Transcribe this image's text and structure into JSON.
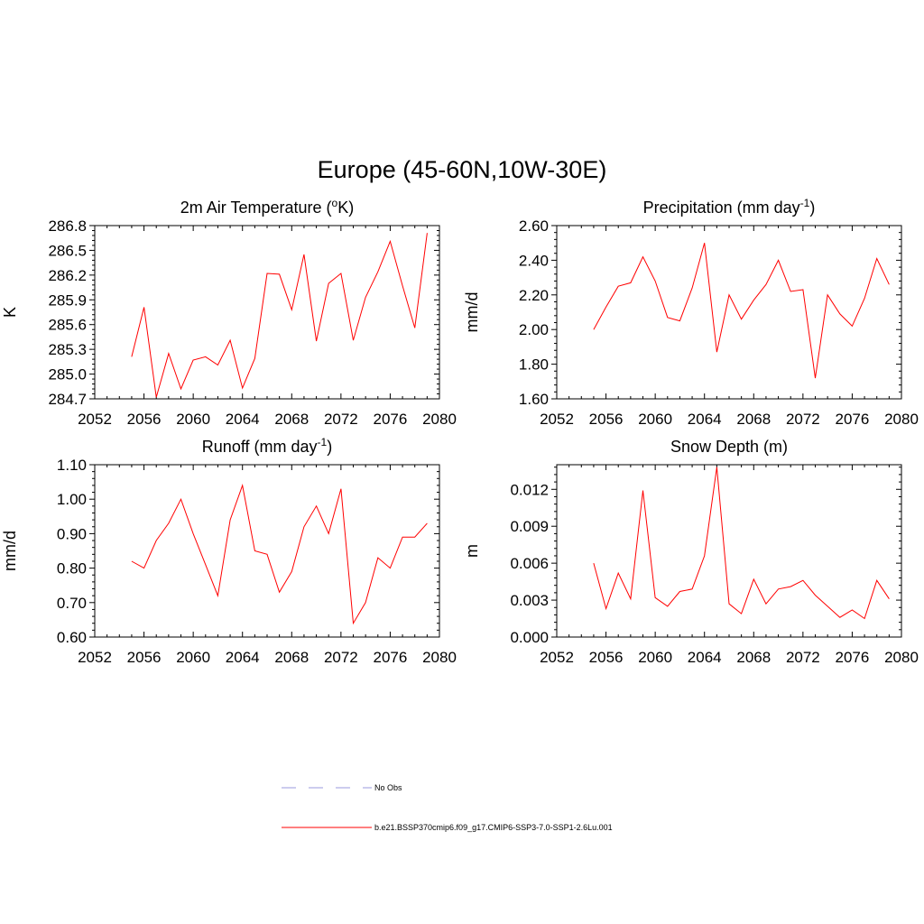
{
  "title": "Europe (45-60N,10W-30E)",
  "series_color": "#ff0000",
  "obs_color": "#9999dd",
  "legend": {
    "obs_label": "No Obs",
    "model_label": "b.e21.BSSP370cmip6.f09_g17.CMIP6-SSP3-7.0-SSP1-2.6Lu.001"
  },
  "chart_data": [
    {
      "type": "line",
      "title": "2m Air Temperature (",
      "title_sup": "o",
      "title_tail": "K)",
      "ylabel": "K",
      "xlim": [
        2052,
        2080
      ],
      "ylim": [
        284.7,
        286.8
      ],
      "xticks": [
        2052,
        2056,
        2060,
        2064,
        2068,
        2072,
        2076,
        2080
      ],
      "ytick_labels": [
        "284.7",
        "285.0",
        "285.3",
        "285.6",
        "285.9",
        "286.2",
        "286.5",
        "286.8"
      ],
      "x": [
        2055,
        2056,
        2057,
        2058,
        2059,
        2060,
        2061,
        2062,
        2063,
        2064,
        2065,
        2066,
        2067,
        2068,
        2069,
        2070,
        2071,
        2072,
        2073,
        2074,
        2075,
        2076,
        2077,
        2078,
        2079
      ],
      "values": [
        285.21,
        285.81,
        284.72,
        285.25,
        284.82,
        285.17,
        285.21,
        285.11,
        285.41,
        284.83,
        285.19,
        286.22,
        286.21,
        285.78,
        286.45,
        285.4,
        286.1,
        286.22,
        285.41,
        285.93,
        286.24,
        286.61,
        286.07,
        285.56,
        286.71
      ]
    },
    {
      "type": "line",
      "title": "Precipitation (mm day",
      "title_sup": "-1",
      "title_tail": ")",
      "ylabel": "mm/d",
      "xlim": [
        2052,
        2080
      ],
      "ylim": [
        1.6,
        2.6
      ],
      "xticks": [
        2052,
        2056,
        2060,
        2064,
        2068,
        2072,
        2076,
        2080
      ],
      "ytick_labels": [
        "1.60",
        "1.80",
        "2.00",
        "2.20",
        "2.40",
        "2.60"
      ],
      "x": [
        2055,
        2056,
        2057,
        2058,
        2059,
        2060,
        2061,
        2062,
        2063,
        2064,
        2065,
        2066,
        2067,
        2068,
        2069,
        2070,
        2071,
        2072,
        2073,
        2074,
        2075,
        2076,
        2077,
        2078,
        2079
      ],
      "values": [
        2.0,
        2.13,
        2.25,
        2.27,
        2.42,
        2.28,
        2.07,
        2.05,
        2.24,
        2.5,
        1.87,
        2.2,
        2.06,
        2.17,
        2.26,
        2.4,
        2.22,
        2.23,
        1.72,
        2.2,
        2.09,
        2.02,
        2.18,
        2.41,
        2.26
      ]
    },
    {
      "type": "line",
      "title": "Runoff (mm day",
      "title_sup": "-1",
      "title_tail": ")",
      "ylabel": "mm/d",
      "xlim": [
        2052,
        2080
      ],
      "ylim": [
        0.6,
        1.1
      ],
      "xticks": [
        2052,
        2056,
        2060,
        2064,
        2068,
        2072,
        2076,
        2080
      ],
      "ytick_labels": [
        "0.60",
        "0.70",
        "0.80",
        "0.90",
        "1.00",
        "1.10"
      ],
      "x": [
        2055,
        2056,
        2057,
        2058,
        2059,
        2060,
        2061,
        2062,
        2063,
        2064,
        2065,
        2066,
        2067,
        2068,
        2069,
        2070,
        2071,
        2072,
        2073,
        2074,
        2075,
        2076,
        2077,
        2078,
        2079
      ],
      "values": [
        0.82,
        0.8,
        0.88,
        0.93,
        1.0,
        0.9,
        0.81,
        0.72,
        0.94,
        1.04,
        0.85,
        0.84,
        0.73,
        0.79,
        0.92,
        0.98,
        0.9,
        1.03,
        0.64,
        0.7,
        0.83,
        0.8,
        0.89,
        0.89,
        0.93
      ]
    },
    {
      "type": "line",
      "title": "Snow Depth (m)",
      "title_sup": "",
      "title_tail": "",
      "ylabel": "m",
      "xlim": [
        2052,
        2080
      ],
      "ylim": [
        0.0,
        0.014
      ],
      "xticks": [
        2052,
        2056,
        2060,
        2064,
        2068,
        2072,
        2076,
        2080
      ],
      "ytick_labels": [
        "0.000",
        "0.003",
        "0.006",
        "0.009",
        "0.012"
      ],
      "ytick_values": [
        0.0,
        0.003,
        0.006,
        0.009,
        0.012
      ],
      "x": [
        2055,
        2056,
        2057,
        2058,
        2059,
        2060,
        2061,
        2062,
        2063,
        2064,
        2065,
        2066,
        2067,
        2068,
        2069,
        2070,
        2071,
        2072,
        2073,
        2074,
        2075,
        2076,
        2077,
        2078,
        2079
      ],
      "values": [
        0.006,
        0.0023,
        0.0052,
        0.0031,
        0.0119,
        0.0032,
        0.0025,
        0.0037,
        0.0039,
        0.0066,
        0.0138,
        0.0027,
        0.0019,
        0.0047,
        0.0027,
        0.0039,
        0.0041,
        0.0046,
        0.0034,
        0.0025,
        0.0016,
        0.0022,
        0.0015,
        0.0046,
        0.0031
      ]
    }
  ]
}
